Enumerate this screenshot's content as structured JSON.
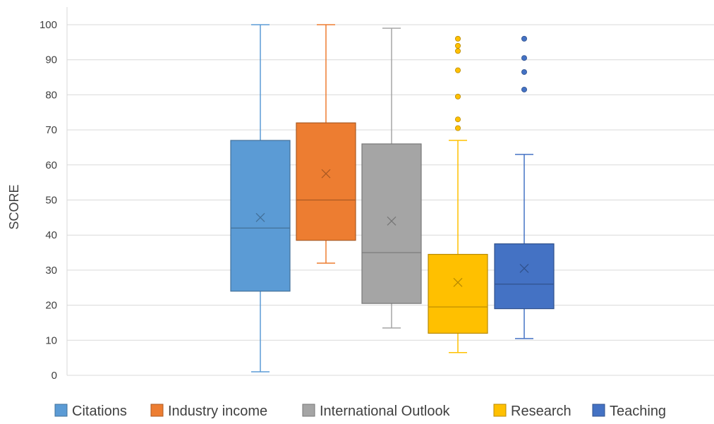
{
  "chart_data": {
    "type": "box",
    "title": "",
    "xlabel": "",
    "ylabel": "SCORE",
    "ylim": [
      0,
      100
    ],
    "yticks": [
      0,
      10,
      20,
      30,
      40,
      50,
      60,
      70,
      80,
      90,
      100
    ],
    "grid": true,
    "legend_position": "bottom",
    "series": [
      {
        "name": "Citations",
        "color": "#5B9BD5",
        "min": 1,
        "q1": 24,
        "median": 42,
        "q3": 67,
        "max": 100,
        "mean": 45,
        "outliers": []
      },
      {
        "name": "Industry income",
        "color": "#ED7D31",
        "min": 32,
        "q1": 38.5,
        "median": 50,
        "q3": 72,
        "max": 100,
        "mean": 57.5,
        "outliers": []
      },
      {
        "name": "International Outlook",
        "color": "#A5A5A5",
        "min": 13.5,
        "q1": 20.5,
        "median": 35,
        "q3": 66,
        "max": 99,
        "mean": 44,
        "outliers": []
      },
      {
        "name": "Research",
        "color": "#FFC000",
        "min": 6.5,
        "q1": 12,
        "median": 19.5,
        "q3": 34.5,
        "max": 67,
        "mean": 26.5,
        "outliers": [
          96,
          94,
          92.5,
          87,
          79.5,
          73,
          70.5
        ]
      },
      {
        "name": "Teaching",
        "color": "#4472C4",
        "min": 10.5,
        "q1": 19,
        "median": 26,
        "q3": 37.5,
        "max": 63,
        "mean": 30.5,
        "outliers": [
          96,
          90.5,
          86.5,
          81.5
        ]
      }
    ]
  }
}
